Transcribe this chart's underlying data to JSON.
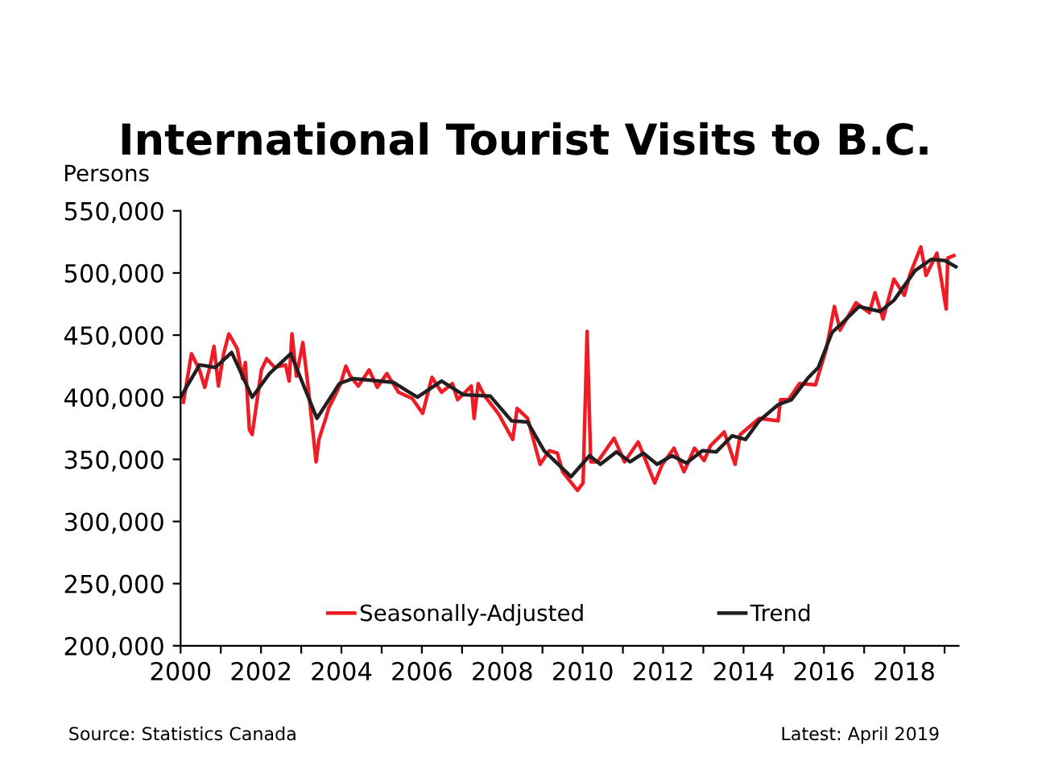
{
  "chart_data": {
    "type": "line",
    "title": "International Tourist Visits to B.C.",
    "ylabel": "Persons",
    "annotations": [
      "Source: Statistics Canada",
      "Latest: April 2019"
    ],
    "xlim": [
      2000,
      2019.35
    ],
    "ylim": [
      200000,
      550000
    ],
    "yticks": [
      {
        "value": 200000,
        "label": "200,000"
      },
      {
        "value": 250000,
        "label": "250,000"
      },
      {
        "value": 300000,
        "label": "300,000"
      },
      {
        "value": 350000,
        "label": "350,000"
      },
      {
        "value": 400000,
        "label": "400,000"
      },
      {
        "value": 450000,
        "label": "450,000"
      },
      {
        "value": 500000,
        "label": "500,000"
      },
      {
        "value": 550000,
        "label": "550,000"
      }
    ],
    "xticks": [
      2000,
      {
        "value": 2001,
        "label": null
      },
      2002,
      {
        "value": 2003,
        "label": null
      },
      2004,
      {
        "value": 2005,
        "label": null
      },
      2006,
      {
        "value": 2007,
        "label": null
      },
      2008,
      {
        "value": 2009,
        "label": null
      },
      2010,
      {
        "value": 2011,
        "label": null
      },
      2012,
      {
        "value": 2013,
        "label": null
      },
      2014,
      {
        "value": 2015,
        "label": null
      },
      2016,
      {
        "value": 2017,
        "label": null
      },
      2018,
      {
        "value": 2019,
        "label": null
      }
    ],
    "grid": false,
    "legend": "bottom",
    "line_style": "solid",
    "marker": "none",
    "series": [
      {
        "name": "Seasonally-Adjusted",
        "color": "#ee1c25",
        "x": [
          2000.07,
          2000.27,
          2000.47,
          2000.6,
          2000.74,
          2000.83,
          2000.94,
          2001.07,
          2001.2,
          2001.41,
          2001.54,
          2001.61,
          2001.71,
          2001.78,
          2002.01,
          2002.14,
          2002.34,
          2002.61,
          2002.7,
          2002.77,
          2002.88,
          2003.04,
          2003.17,
          2003.37,
          2003.44,
          2003.61,
          2003.68,
          2003.82,
          2003.98,
          2004.11,
          2004.22,
          2004.42,
          2004.69,
          2004.89,
          2005.13,
          2005.42,
          2005.76,
          2006.02,
          2006.25,
          2006.49,
          2006.76,
          2006.89,
          2007.23,
          2007.3,
          2007.4,
          2007.56,
          2007.9,
          2008.26,
          2008.37,
          2008.63,
          2008.94,
          2009.17,
          2009.37,
          2009.5,
          2009.87,
          2010.01,
          2010.11,
          2010.2,
          2010.37,
          2010.78,
          2011.04,
          2011.38,
          2011.58,
          2011.79,
          2011.98,
          2012.27,
          2012.52,
          2012.78,
          2013.02,
          2013.18,
          2013.52,
          2013.79,
          2013.92,
          2014.39,
          2014.86,
          2014.92,
          2015.12,
          2015.39,
          2015.79,
          2016.06,
          2016.26,
          2016.4,
          2016.8,
          2017.13,
          2017.27,
          2017.47,
          2017.74,
          2018.0,
          2018.14,
          2018.41,
          2018.54,
          2018.81,
          2019.04,
          2019.08,
          2019.23
        ],
        "values": [
          396000,
          435000,
          422000,
          408000,
          426000,
          441000,
          409000,
          435000,
          451000,
          439000,
          415000,
          428000,
          374000,
          370000,
          422000,
          431000,
          424000,
          426000,
          413000,
          451000,
          417000,
          444000,
          409000,
          348000,
          366000,
          383000,
          391000,
          400000,
          411000,
          425000,
          417000,
          409000,
          422000,
          408000,
          419000,
          404000,
          399000,
          387000,
          416000,
          404000,
          411000,
          398000,
          409000,
          383000,
          411000,
          401000,
          387000,
          366000,
          391000,
          383000,
          346000,
          357000,
          355000,
          340000,
          325000,
          331000,
          453000,
          348000,
          348000,
          367000,
          348000,
          364000,
          348000,
          331000,
          346000,
          359000,
          340000,
          359000,
          349000,
          361000,
          372000,
          346000,
          370000,
          383000,
          381000,
          398000,
          398000,
          411000,
          410000,
          439000,
          473000,
          454000,
          476000,
          468000,
          484000,
          463000,
          495000,
          482000,
          499000,
          521000,
          498000,
          516000,
          471000,
          512000,
          514000
        ]
      },
      {
        "name": "Trend",
        "color": "#231f20",
        "x": [
          2000.0,
          2000.47,
          2000.87,
          2001.27,
          2001.78,
          2002.21,
          2002.74,
          2003.39,
          2003.95,
          2004.28,
          2005.29,
          2005.89,
          2006.49,
          2007.03,
          2007.7,
          2008.23,
          2008.63,
          2009.04,
          2009.71,
          2010.17,
          2010.44,
          2010.84,
          2011.18,
          2011.51,
          2011.85,
          2012.22,
          2012.58,
          2012.98,
          2013.32,
          2013.72,
          2014.05,
          2014.39,
          2014.86,
          2015.19,
          2015.59,
          2015.86,
          2016.2,
          2016.4,
          2016.87,
          2017.4,
          2017.74,
          2018.27,
          2018.67,
          2019.01,
          2019.28
        ],
        "values": [
          400000,
          426000,
          424000,
          436000,
          400000,
          419000,
          435000,
          383000,
          411000,
          415000,
          412000,
          400000,
          413000,
          402000,
          401000,
          381000,
          380000,
          357000,
          336000,
          353000,
          346000,
          356000,
          348000,
          355000,
          346000,
          353000,
          347000,
          357000,
          356000,
          369000,
          366000,
          381000,
          394000,
          398000,
          415000,
          424000,
          452000,
          458000,
          473000,
          469000,
          478000,
          502000,
          511000,
          510000,
          505000
        ]
      }
    ]
  }
}
